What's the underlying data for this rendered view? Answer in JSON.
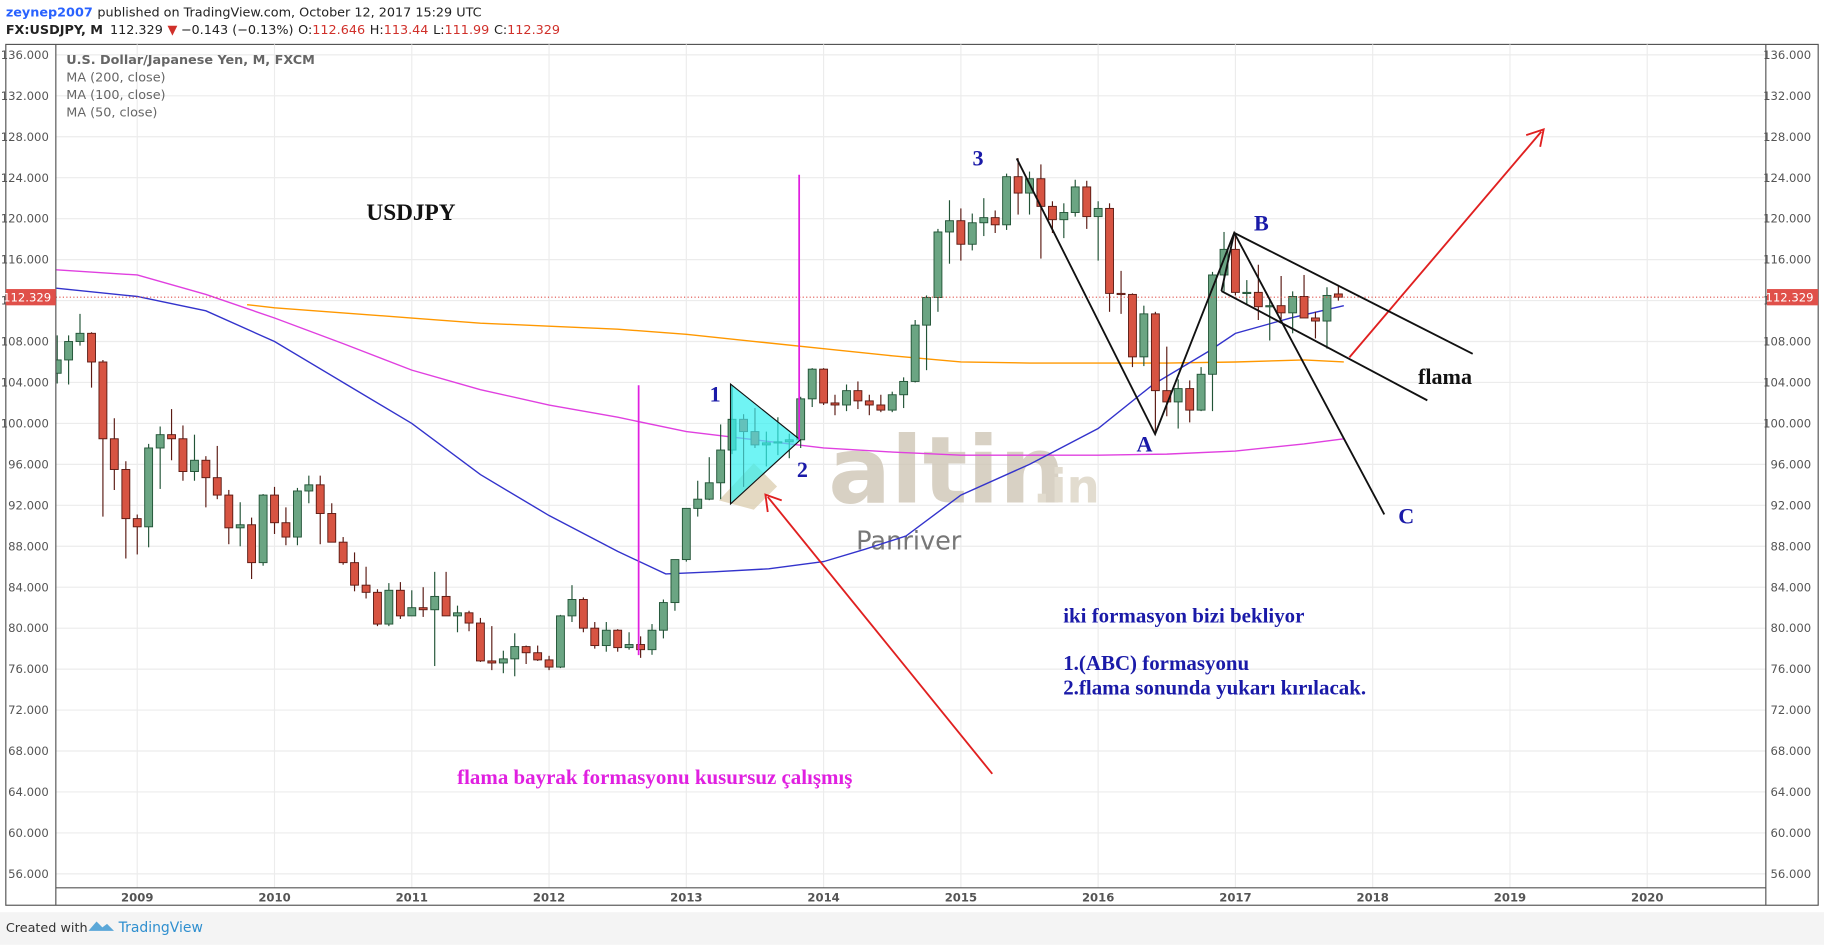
{
  "header": {
    "author": "zeynep2007",
    "published": "published on TradingView.com, October 12, 2017 15:29 UTC",
    "symbol": "FX:USDJPY, M",
    "arrow": "▼",
    "change": "−0.143 (−0.13%)",
    "open_label": "O:",
    "high_label": "H:",
    "low_label": "L:",
    "close_label": "C:"
  },
  "footer": {
    "created": "Created with",
    "brand": "TradingView"
  },
  "chart_data": {
    "type": "candlestick",
    "title": "U.S. Dollar/Japanese Yen, M, FXCM",
    "x": [
      2008.417,
      2008.5,
      2008.583,
      2008.667,
      2008.75,
      2008.833,
      2008.917,
      2009.0,
      2009.083,
      2009.167,
      2009.25,
      2009.333,
      2009.417,
      2009.5,
      2009.583,
      2009.667,
      2009.75,
      2009.833,
      2009.917,
      2010.0,
      2010.083,
      2010.167,
      2010.25,
      2010.333,
      2010.417,
      2010.5,
      2010.583,
      2010.667,
      2010.75,
      2010.833,
      2010.917,
      2011.0,
      2011.083,
      2011.167,
      2011.25,
      2011.333,
      2011.417,
      2011.5,
      2011.583,
      2011.667,
      2011.75,
      2011.833,
      2011.917,
      2012.0,
      2012.083,
      2012.167,
      2012.25,
      2012.333,
      2012.417,
      2012.5,
      2012.583,
      2012.667,
      2012.75,
      2012.833,
      2012.917,
      2013.0,
      2013.083,
      2013.167,
      2013.25,
      2013.333,
      2013.417,
      2013.5,
      2013.583,
      2013.667,
      2013.75,
      2013.833,
      2013.917,
      2014.0,
      2014.083,
      2014.167,
      2014.25,
      2014.333,
      2014.417,
      2014.5,
      2014.583,
      2014.667,
      2014.75,
      2014.833,
      2014.917,
      2015.0,
      2015.083,
      2015.167,
      2015.25,
      2015.333,
      2015.417,
      2015.5,
      2015.583,
      2015.667,
      2015.75,
      2015.833,
      2015.917,
      2016.0,
      2016.083,
      2016.167,
      2016.25,
      2016.333,
      2016.417,
      2016.5,
      2016.583,
      2016.667,
      2016.75,
      2016.833,
      2016.917,
      2017.0,
      2017.083,
      2017.167,
      2017.25,
      2017.333,
      2017.417,
      2017.5,
      2017.583,
      2017.667,
      2017.75
    ],
    "open": [
      104.9,
      106.2,
      108.0,
      108.8,
      106.0,
      98.5,
      95.5,
      90.7,
      89.9,
      97.6,
      98.9,
      98.5,
      95.3,
      96.4,
      94.7,
      93.0,
      89.8,
      90.1,
      86.4,
      93.0,
      90.3,
      88.9,
      93.4,
      94.0,
      91.2,
      88.4,
      86.4,
      84.2,
      83.5,
      80.4,
      83.7,
      81.2,
      82.0,
      81.8,
      83.1,
      81.2,
      81.5,
      80.5,
      76.8,
      76.6,
      77.0,
      78.2,
      77.6,
      76.9,
      76.2,
      81.2,
      82.8,
      80.0,
      78.3,
      79.8,
      78.1,
      78.4,
      77.9,
      79.8,
      82.5,
      86.7,
      91.7,
      92.6,
      94.2,
      97.4,
      100.4,
      99.2,
      97.9,
      98.1,
      98.2,
      98.4,
      102.4,
      105.3,
      102.0,
      101.8,
      103.2,
      102.2,
      101.8,
      101.3,
      102.8,
      104.1,
      109.6,
      112.3,
      118.7,
      119.8,
      117.5,
      119.6,
      120.1,
      119.4,
      124.1,
      122.5,
      123.9,
      121.2,
      119.9,
      120.6,
      123.1,
      120.2,
      121.0,
      112.7,
      112.6,
      106.5,
      110.7,
      103.2,
      102.1,
      103.4,
      101.3,
      104.8,
      114.5,
      117.0,
      112.8,
      112.8,
      111.4,
      111.5,
      110.8,
      112.4,
      110.3,
      110.0,
      112.646
    ],
    "high": [
      108.6,
      108.6,
      110.7,
      108.9,
      106.2,
      100.5,
      96.3,
      91.1,
      98.0,
      99.7,
      101.4,
      99.8,
      98.9,
      96.8,
      97.8,
      93.5,
      92.3,
      90.8,
      93.1,
      93.8,
      91.8,
      93.7,
      94.9,
      94.9,
      92.2,
      88.9,
      87.4,
      86.0,
      83.8,
      84.4,
      84.5,
      83.7,
      84.0,
      85.5,
      85.5,
      82.2,
      81.7,
      81.0,
      80.2,
      77.8,
      79.5,
      78.3,
      78.3,
      77.3,
      81.3,
      84.2,
      83.0,
      80.6,
      80.6,
      79.9,
      79.6,
      79.2,
      80.4,
      82.8,
      86.7,
      91.7,
      94.4,
      96.7,
      99.9,
      103.7,
      100.9,
      101.5,
      99.2,
      100.6,
      99.0,
      102.6,
      105.4,
      105.4,
      102.8,
      103.8,
      104.1,
      102.8,
      102.8,
      103.1,
      104.5,
      110.1,
      112.5,
      119.0,
      121.8,
      121.0,
      120.5,
      122.0,
      120.8,
      124.4,
      125.9,
      124.6,
      125.3,
      121.7,
      121.5,
      123.8,
      123.7,
      121.7,
      121.5,
      114.9,
      112.7,
      111.5,
      110.9,
      107.5,
      104.3,
      104.2,
      105.5,
      114.8,
      118.7,
      118.6,
      114.0,
      115.5,
      112.2,
      114.4,
      112.9,
      114.5,
      110.9,
      113.3,
      113.44
    ],
    "low": [
      103.9,
      103.8,
      107.6,
      103.5,
      90.9,
      93.5,
      86.8,
      87.2,
      87.9,
      93.6,
      96.4,
      94.4,
      94.4,
      91.8,
      92.6,
      88.2,
      88.0,
      84.8,
      86.1,
      89.2,
      88.1,
      88.1,
      92.2,
      88.2,
      88.4,
      86.2,
      83.6,
      82.9,
      80.2,
      80.2,
      80.9,
      81.2,
      81.1,
      76.3,
      81.3,
      79.6,
      79.7,
      76.7,
      75.9,
      75.6,
      75.3,
      76.5,
      76.8,
      75.9,
      76.1,
      80.6,
      79.6,
      78.0,
      77.7,
      77.7,
      77.9,
      77.1,
      77.4,
      79.0,
      81.7,
      86.5,
      90.9,
      92.5,
      92.6,
      97.0,
      93.8,
      97.6,
      95.8,
      96.9,
      96.6,
      97.6,
      101.6,
      101.8,
      100.8,
      101.2,
      101.4,
      100.8,
      101.1,
      101.1,
      101.5,
      104.0,
      105.2,
      110.9,
      115.6,
      115.9,
      116.9,
      118.3,
      118.6,
      118.9,
      120.4,
      120.4,
      116.1,
      118.6,
      118.1,
      120.2,
      119.0,
      115.9,
      110.9,
      110.7,
      105.5,
      105.6,
      99.0,
      100.7,
      99.5,
      100.1,
      101.2,
      101.2,
      112.9,
      112.5,
      111.6,
      110.1,
      108.1,
      110.2,
      108.8,
      110.6,
      108.3,
      107.3,
      111.99
    ],
    "close": [
      106.2,
      108.0,
      108.8,
      106.0,
      98.5,
      95.5,
      90.7,
      89.9,
      97.6,
      98.9,
      98.5,
      95.3,
      96.4,
      94.7,
      93.0,
      89.8,
      90.1,
      86.4,
      93.0,
      90.3,
      88.9,
      93.4,
      94.0,
      91.2,
      88.4,
      86.4,
      84.2,
      83.5,
      80.4,
      83.7,
      81.2,
      82.0,
      81.8,
      83.1,
      81.2,
      81.5,
      80.5,
      76.8,
      76.6,
      77.0,
      78.2,
      77.6,
      76.9,
      76.2,
      81.2,
      82.8,
      80.0,
      78.3,
      79.8,
      78.1,
      78.4,
      77.9,
      79.8,
      82.5,
      86.7,
      91.7,
      92.6,
      94.2,
      97.4,
      100.4,
      99.2,
      97.9,
      98.1,
      98.2,
      98.4,
      102.4,
      105.3,
      102.0,
      101.8,
      103.2,
      102.2,
      101.8,
      101.3,
      102.8,
      104.1,
      109.6,
      112.3,
      118.7,
      119.8,
      117.5,
      119.6,
      120.1,
      119.4,
      124.1,
      122.5,
      123.9,
      121.2,
      119.9,
      120.6,
      123.1,
      120.2,
      121.0,
      112.7,
      112.6,
      106.5,
      110.7,
      103.2,
      102.1,
      103.4,
      101.3,
      104.8,
      114.5,
      117.0,
      112.8,
      112.8,
      111.4,
      111.5,
      110.8,
      112.4,
      110.3,
      110.0,
      112.5,
      112.329
    ],
    "up_color": "#6ba583",
    "down_color": "#d75442",
    "moving_averages": [
      {
        "name": "MA (200, close)",
        "color": "#ff9800",
        "x": [
          2009.8,
          2010.0,
          2010.5,
          2011.0,
          2011.5,
          2012.0,
          2012.5,
          2013.0,
          2013.5,
          2014.0,
          2014.5,
          2015.0,
          2015.5,
          2016.0,
          2016.5,
          2017.0,
          2017.5,
          2017.79
        ],
        "values": [
          111.6,
          111.3,
          110.8,
          110.3,
          109.8,
          109.5,
          109.2,
          108.7,
          108.0,
          107.3,
          106.6,
          106.0,
          105.9,
          105.9,
          105.9,
          106.0,
          106.2,
          106.0
        ]
      },
      {
        "name": "MA (100, close)",
        "color": "#e040e0",
        "x": [
          2008.41,
          2009.0,
          2009.5,
          2010.0,
          2010.5,
          2011.0,
          2011.5,
          2012.0,
          2012.5,
          2013.0,
          2013.5,
          2014.0,
          2014.5,
          2015.0,
          2015.5,
          2016.0,
          2016.5,
          2017.0,
          2017.5,
          2017.79
        ],
        "values": [
          115.0,
          114.5,
          112.6,
          110.3,
          107.8,
          105.2,
          103.3,
          101.8,
          100.6,
          99.2,
          98.4,
          97.6,
          97.2,
          96.9,
          96.9,
          96.9,
          97.0,
          97.3,
          98.0,
          98.5
        ]
      },
      {
        "name": "MA (50, close)",
        "color": "#3333cc",
        "x": [
          2008.41,
          2009.0,
          2009.5,
          2010.0,
          2010.5,
          2011.0,
          2011.5,
          2012.0,
          2012.5,
          2012.85,
          2013.2,
          2013.6,
          2014.0,
          2014.3,
          2014.6,
          2015.0,
          2015.5,
          2016.0,
          2016.4,
          2016.8,
          2017.0,
          2017.4,
          2017.79
        ],
        "values": [
          113.2,
          112.4,
          111.0,
          108.0,
          104.0,
          100.0,
          95.0,
          91.0,
          87.5,
          85.3,
          85.5,
          85.8,
          86.5,
          87.7,
          89.0,
          93.0,
          96.0,
          99.5,
          103.8,
          107.0,
          108.8,
          110.3,
          111.5
        ]
      }
    ],
    "xlim": [
      2008.407,
      2020.864
    ],
    "xticks": [
      2009,
      2010,
      2011,
      2012,
      2013,
      2014,
      2015,
      2016,
      2017,
      2018,
      2019,
      2020
    ],
    "ylim": [
      54.64,
      137.02
    ],
    "yticks": [
      {
        "value": 56,
        "label": "56.000"
      },
      {
        "value": 60,
        "label": "60.000"
      },
      {
        "value": 64,
        "label": "64.000"
      },
      {
        "value": 68,
        "label": "68.000"
      },
      {
        "value": 72,
        "label": "72.000"
      },
      {
        "value": 76,
        "label": "76.000"
      },
      {
        "value": 80,
        "label": "80.000"
      },
      {
        "value": 84,
        "label": "84.000"
      },
      {
        "value": 88,
        "label": "88.000"
      },
      {
        "value": 92,
        "label": "92.000"
      },
      {
        "value": 96,
        "label": "96.000"
      },
      {
        "value": 100,
        "label": "100.000"
      },
      {
        "value": 104,
        "label": "104.000"
      },
      {
        "value": 108,
        "label": "108.000"
      },
      {
        "value": 112,
        "label": "112.000"
      },
      {
        "value": 116,
        "label": "116.000"
      },
      {
        "value": 120,
        "label": "120.000"
      },
      {
        "value": 124,
        "label": "124.000"
      },
      {
        "value": 128,
        "label": "128.000"
      },
      {
        "value": 132,
        "label": "132.000"
      },
      {
        "value": 136,
        "label": "136.000"
      }
    ],
    "grid": true,
    "last_price_color": "#e0504a"
  },
  "annotations": {
    "symbol": "USDJPY",
    "p1": "1",
    "p2": "2",
    "p3": "3",
    "a": "A",
    "b": "B",
    "c": "C",
    "flama": "flama",
    "note1": "iki formasyon bizi bekliyor",
    "note2": "1.(ABC) formasyonu",
    "note3": "2.flama sonunda yukarı kırılacak.",
    "flag_note": "flama bayrak formasyonu kusursuz çalışmış",
    "watermark": "altin",
    "watermark_tld": ".in",
    "watermark_sub": "Panriver"
  }
}
